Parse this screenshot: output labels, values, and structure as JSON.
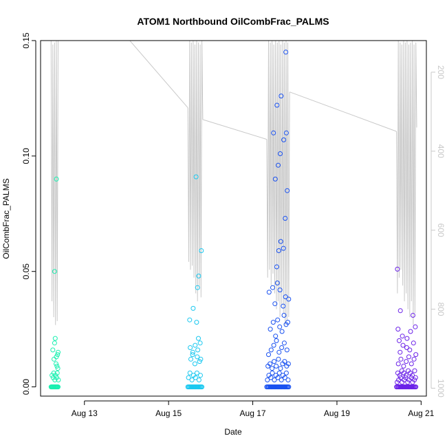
{
  "chart_data": {
    "type": "scatter",
    "title": "ATOM1 Northbound OilCombFrac_PALMS",
    "xlabel": "Date",
    "ylabel": "OilCombFrac_PALMS",
    "xlim": [
      "2016-08-11T23:00",
      "2016-08-21T03:00"
    ],
    "ylim": [
      -0.004,
      0.15
    ],
    "x_ticks": [
      {
        "date": "2016-08-13",
        "label": "Aug 13"
      },
      {
        "date": "2016-08-15",
        "label": "Aug 15"
      },
      {
        "date": "2016-08-17",
        "label": "Aug 17"
      },
      {
        "date": "2016-08-19",
        "label": "Aug 19"
      },
      {
        "date": "2016-08-21",
        "label": "Aug 21"
      }
    ],
    "y_ticks": [
      0.0,
      0.05,
      0.1,
      0.15
    ],
    "y_tick_labels": [
      "0.00",
      "0.05",
      "0.10",
      "0.15"
    ],
    "secondary_axis": {
      "side": "right",
      "color": "#c8c8c8",
      "reversed": true,
      "ticks": [
        200,
        400,
        600,
        800,
        1000
      ],
      "range": [
        120,
        1020
      ],
      "series": {
        "name": "",
        "color": "#c8c8c8",
        "segments": [
          {
            "x": [
              "2016-08-12T05:00",
              "2016-08-12T05:30",
              "2016-08-12T06:00",
              "2016-08-12T06:30",
              "2016-08-12T07:00",
              "2016-08-12T07:30",
              "2016-08-12T08:00",
              "2016-08-12T08:30",
              "2016-08-12T09:00",
              "2016-08-12T09:30"
            ],
            "y": [
              120,
              780,
              130,
              820,
              125,
              840,
              120,
              830,
              120,
              90
            ]
          },
          {
            "x": [
              "2016-08-12T09:30",
              "2016-08-13T22:00",
              "2016-08-15T11:00"
            ],
            "y": [
              90,
              100,
              290
            ]
          },
          {
            "x": [
              "2016-08-15T11:00",
              "2016-08-15T11:30",
              "2016-08-15T12:00",
              "2016-08-15T12:30",
              "2016-08-15T13:00",
              "2016-08-15T13:30",
              "2016-08-15T14:00",
              "2016-08-15T14:30",
              "2016-08-15T15:00",
              "2016-08-15T15:30",
              "2016-08-15T16:00",
              "2016-08-15T16:30",
              "2016-08-15T17:00",
              "2016-08-15T17:30",
              "2016-08-15T18:00",
              "2016-08-15T18:30",
              "2016-08-15T19:00",
              "2016-08-15T19:30"
            ],
            "y": [
              290,
              680,
              120,
              700,
              125,
              690,
              120,
              720,
              130,
              760,
              120,
              780,
              125,
              750,
              130,
              770,
              120,
              320
            ]
          },
          {
            "x": [
              "2016-08-15T19:30",
              "2016-08-17T08:00"
            ],
            "y": [
              320,
              370
            ]
          },
          {
            "x": [
              "2016-08-17T08:00",
              "2016-08-17T08:30",
              "2016-08-17T09:00",
              "2016-08-17T09:30",
              "2016-08-17T10:00",
              "2016-08-17T10:30",
              "2016-08-17T11:00",
              "2016-08-17T11:30",
              "2016-08-17T12:00",
              "2016-08-17T12:30",
              "2016-08-17T13:00",
              "2016-08-17T13:30",
              "2016-08-17T14:00",
              "2016-08-17T14:30",
              "2016-08-17T15:00",
              "2016-08-17T15:30",
              "2016-08-17T16:00",
              "2016-08-17T16:30",
              "2016-08-17T17:00",
              "2016-08-17T17:30",
              "2016-08-17T18:00",
              "2016-08-17T18:30",
              "2016-08-17T19:00",
              "2016-08-17T19:30",
              "2016-08-17T20:00",
              "2016-08-17T20:30",
              "2016-08-17T21:00"
            ],
            "y": [
              370,
              720,
              120,
              700,
              125,
              740,
              120,
              710,
              130,
              760,
              120,
              800,
              125,
              780,
              120,
              820,
              130,
              790,
              120,
              810,
              125,
              840,
              120,
              830,
              125,
              820,
              250
            ]
          },
          {
            "x": [
              "2016-08-17T21:00",
              "2016-08-20T10:00"
            ],
            "y": [
              250,
              350
            ]
          },
          {
            "x": [
              "2016-08-20T10:00",
              "2016-08-20T10:30",
              "2016-08-20T11:00",
              "2016-08-20T11:30",
              "2016-08-20T12:00",
              "2016-08-20T12:30",
              "2016-08-20T13:00",
              "2016-08-20T13:30",
              "2016-08-20T14:00",
              "2016-08-20T14:30",
              "2016-08-20T15:00",
              "2016-08-20T15:30",
              "2016-08-20T16:00",
              "2016-08-20T16:30",
              "2016-08-20T17:00",
              "2016-08-20T17:30",
              "2016-08-20T18:00",
              "2016-08-20T18:30",
              "2016-08-20T19:00",
              "2016-08-20T19:30",
              "2016-08-20T20:00",
              "2016-08-20T20:30",
              "2016-08-20T21:00",
              "2016-08-20T21:30"
            ],
            "y": [
              350,
              760,
              120,
              720,
              125,
              700,
              130,
              740,
              120,
              780,
              125,
              760,
              120,
              800,
              130,
              820,
              125,
              780,
              120,
              840,
              130,
              810,
              125,
              340
            ]
          }
        ]
      }
    },
    "series": [
      {
        "color": "#18f0b0",
        "x": [
          "2016-08-12T05:00",
          "2016-08-12T05:20",
          "2016-08-12T05:40",
          "2016-08-12T06:00",
          "2016-08-12T06:20",
          "2016-08-12T06:40",
          "2016-08-12T07:00",
          "2016-08-12T07:20",
          "2016-08-12T07:40",
          "2016-08-12T08:00",
          "2016-08-12T08:20",
          "2016-08-12T08:40",
          "2016-08-12T09:00",
          "2016-08-12T05:30",
          "2016-08-12T06:10",
          "2016-08-12T06:30",
          "2016-08-12T07:10",
          "2016-08-12T07:30",
          "2016-08-12T08:10",
          "2016-08-12T08:30",
          "2016-08-12T09:10",
          "2016-08-12T06:00",
          "2016-08-12T07:00",
          "2016-08-12T08:00",
          "2016-08-12T09:00",
          "2016-08-12T06:40",
          "2016-08-12T07:50",
          "2016-08-12T08:20",
          "2016-08-12T08:50",
          "2016-08-12T07:20",
          "2016-08-12T08:40",
          "2016-08-12T07:00",
          "2016-08-12T08:00"
        ],
        "y": [
          0,
          0,
          0,
          0,
          0,
          0,
          0,
          0,
          0,
          0,
          0,
          0,
          0,
          0.005,
          0.004,
          0.006,
          0.003,
          0.005,
          0.004,
          0.006,
          0.003,
          0.016,
          0.019,
          0.013,
          0.015,
          0.012,
          0.01,
          0.009,
          0.008,
          0.021,
          0.014,
          0.05,
          0.09
        ]
      },
      {
        "color": "#18c8f0",
        "x": [
          "2016-08-15T11:00",
          "2016-08-15T11:30",
          "2016-08-15T12:00",
          "2016-08-15T12:30",
          "2016-08-15T13:00",
          "2016-08-15T13:30",
          "2016-08-15T14:00",
          "2016-08-15T14:30",
          "2016-08-15T15:00",
          "2016-08-15T15:30",
          "2016-08-15T16:00",
          "2016-08-15T16:30",
          "2016-08-15T17:00",
          "2016-08-15T17:30",
          "2016-08-15T18:00",
          "2016-08-15T18:30",
          "2016-08-15T19:00",
          "2016-08-15T11:20",
          "2016-08-15T12:10",
          "2016-08-15T13:20",
          "2016-08-15T14:10",
          "2016-08-15T15:20",
          "2016-08-15T16:10",
          "2016-08-15T17:20",
          "2016-08-15T18:10",
          "2016-08-15T12:40",
          "2016-08-15T13:50",
          "2016-08-15T15:00",
          "2016-08-15T16:20",
          "2016-08-15T17:40",
          "2016-08-15T12:20",
          "2016-08-15T13:40",
          "2016-08-15T15:10",
          "2016-08-15T16:40",
          "2016-08-15T18:20",
          "2016-08-15T12:00",
          "2016-08-15T14:00",
          "2016-08-15T16:00",
          "2016-08-15T17:00",
          "2016-08-15T18:00",
          "2016-08-15T16:30",
          "2016-08-15T17:10",
          "2016-08-15T18:40",
          "2016-08-15T15:40"
        ],
        "y": [
          0,
          0,
          0,
          0,
          0,
          0,
          0,
          0,
          0,
          0,
          0,
          0,
          0,
          0,
          0,
          0,
          0,
          0.004,
          0.006,
          0.003,
          0.005,
          0.004,
          0.006,
          0.003,
          0.005,
          0.012,
          0.015,
          0.01,
          0.013,
          0.011,
          0.017,
          0.014,
          0.018,
          0.016,
          0.012,
          0.029,
          0.034,
          0.028,
          0.021,
          0.019,
          0.043,
          0.048,
          0.059,
          0.091
        ]
      },
      {
        "color": "#1850f0",
        "x": [
          "2016-08-17T08:00",
          "2016-08-17T08:30",
          "2016-08-17T09:00",
          "2016-08-17T09:30",
          "2016-08-17T10:00",
          "2016-08-17T10:30",
          "2016-08-17T11:00",
          "2016-08-17T11:30",
          "2016-08-17T12:00",
          "2016-08-17T12:30",
          "2016-08-17T13:00",
          "2016-08-17T13:30",
          "2016-08-17T14:00",
          "2016-08-17T14:30",
          "2016-08-17T15:00",
          "2016-08-17T15:30",
          "2016-08-17T16:00",
          "2016-08-17T16:30",
          "2016-08-17T17:00",
          "2016-08-17T17:30",
          "2016-08-17T18:00",
          "2016-08-17T18:30",
          "2016-08-17T19:00",
          "2016-08-17T19:30",
          "2016-08-17T20:00",
          "2016-08-17T20:30",
          "2016-08-17T08:20",
          "2016-08-17T09:10",
          "2016-08-17T10:20",
          "2016-08-17T11:10",
          "2016-08-17T12:20",
          "2016-08-17T13:10",
          "2016-08-17T14:20",
          "2016-08-17T15:10",
          "2016-08-17T16:20",
          "2016-08-17T17:10",
          "2016-08-17T18:20",
          "2016-08-17T19:10",
          "2016-08-17T20:10",
          "2016-08-17T08:40",
          "2016-08-17T09:50",
          "2016-08-17T11:00",
          "2016-08-17T12:10",
          "2016-08-17T13:20",
          "2016-08-17T14:40",
          "2016-08-17T15:50",
          "2016-08-17T17:00",
          "2016-08-17T18:10",
          "2016-08-17T19:20",
          "2016-08-17T20:20",
          "2016-08-17T09:00",
          "2016-08-17T10:30",
          "2016-08-17T12:00",
          "2016-08-17T13:30",
          "2016-08-17T15:00",
          "2016-08-17T16:30",
          "2016-08-17T18:00",
          "2016-08-17T19:30",
          "2016-08-17T10:00",
          "2016-08-17T11:40",
          "2016-08-17T13:00",
          "2016-08-17T14:10",
          "2016-08-17T15:20",
          "2016-08-17T16:40",
          "2016-08-17T17:50",
          "2016-08-17T19:00",
          "2016-08-17T20:00",
          "2016-08-17T09:20",
          "2016-08-17T11:20",
          "2016-08-17T12:40",
          "2016-08-17T14:00",
          "2016-08-17T15:30",
          "2016-08-17T17:20",
          "2016-08-17T18:40",
          "2016-08-17T20:30",
          "2016-08-17T13:40",
          "2016-08-17T14:50",
          "2016-08-17T16:00",
          "2016-08-17T17:30",
          "2016-08-17T18:30",
          "2016-08-17T19:40",
          "2016-08-17T12:50",
          "2016-08-17T14:30",
          "2016-08-17T15:40",
          "2016-08-17T17:40",
          "2016-08-17T19:10",
          "2016-08-17T11:50",
          "2016-08-17T13:50",
          "2016-08-17T16:10",
          "2016-08-17T18:50"
        ],
        "y": [
          0,
          0,
          0,
          0,
          0,
          0,
          0,
          0,
          0,
          0,
          0,
          0,
          0,
          0,
          0,
          0,
          0,
          0,
          0,
          0,
          0,
          0,
          0,
          0,
          0,
          0,
          0.003,
          0.005,
          0.004,
          0.006,
          0.003,
          0.005,
          0.004,
          0.006,
          0.003,
          0.005,
          0.004,
          0.006,
          0.003,
          0.009,
          0.01,
          0.008,
          0.011,
          0.009,
          0.012,
          0.008,
          0.01,
          0.011,
          0.009,
          0.01,
          0.014,
          0.016,
          0.018,
          0.02,
          0.015,
          0.017,
          0.019,
          0.016,
          0.025,
          0.028,
          0.022,
          0.029,
          0.026,
          0.024,
          0.031,
          0.027,
          0.028,
          0.041,
          0.043,
          0.036,
          0.045,
          0.042,
          0.035,
          0.039,
          0.038,
          0.052,
          0.059,
          0.063,
          0.06,
          0.073,
          0.085,
          0.09,
          0.096,
          0.101,
          0.107,
          0.11,
          0.11,
          0.122,
          0.126,
          0.145
        ]
      },
      {
        "color": "#6a20e8",
        "x": [
          "2016-08-20T10:00",
          "2016-08-20T10:30",
          "2016-08-20T11:00",
          "2016-08-20T11:30",
          "2016-08-20T12:00",
          "2016-08-20T12:30",
          "2016-08-20T13:00",
          "2016-08-20T13:30",
          "2016-08-20T14:00",
          "2016-08-20T14:30",
          "2016-08-20T15:00",
          "2016-08-20T15:30",
          "2016-08-20T16:00",
          "2016-08-20T16:30",
          "2016-08-20T17:00",
          "2016-08-20T17:30",
          "2016-08-20T18:00",
          "2016-08-20T18:30",
          "2016-08-20T19:00",
          "2016-08-20T19:30",
          "2016-08-20T20:00",
          "2016-08-20T20:30",
          "2016-08-20T21:00",
          "2016-08-20T10:20",
          "2016-08-20T11:10",
          "2016-08-20T12:20",
          "2016-08-20T13:10",
          "2016-08-20T14:20",
          "2016-08-20T15:10",
          "2016-08-20T16:20",
          "2016-08-20T17:10",
          "2016-08-20T18:20",
          "2016-08-20T19:10",
          "2016-08-20T20:10",
          "2016-08-20T20:50",
          "2016-08-20T10:40",
          "2016-08-20T11:50",
          "2016-08-20T13:00",
          "2016-08-20T14:10",
          "2016-08-20T15:20",
          "2016-08-20T16:40",
          "2016-08-20T17:50",
          "2016-08-20T19:00",
          "2016-08-20T20:20",
          "2016-08-20T11:00",
          "2016-08-20T12:30",
          "2016-08-20T14:00",
          "2016-08-20T15:30",
          "2016-08-20T17:00",
          "2016-08-20T18:30",
          "2016-08-20T20:00",
          "2016-08-20T12:00",
          "2016-08-20T13:40",
          "2016-08-20T15:50",
          "2016-08-20T17:30",
          "2016-08-20T19:40",
          "2016-08-20T21:00",
          "2016-08-20T11:30",
          "2016-08-20T13:20",
          "2016-08-20T16:00",
          "2016-08-20T18:00",
          "2016-08-20T19:20",
          "2016-08-20T20:40",
          "2016-08-20T10:50",
          "2016-08-20T12:10",
          "2016-08-20T10:30"
        ],
        "y": [
          0,
          0,
          0,
          0,
          0,
          0,
          0,
          0,
          0,
          0,
          0,
          0,
          0,
          0,
          0,
          0,
          0,
          0,
          0,
          0,
          0,
          0,
          0,
          0.002,
          0.003,
          0.004,
          0.002,
          0.003,
          0.004,
          0.002,
          0.003,
          0.004,
          0.002,
          0.003,
          0.004,
          0.006,
          0.005,
          0.007,
          0.006,
          0.005,
          0.007,
          0.006,
          0.005,
          0.007,
          0.01,
          0.012,
          0.009,
          0.011,
          0.013,
          0.01,
          0.012,
          0.015,
          0.018,
          0.017,
          0.016,
          0.019,
          0.014,
          0.02,
          0.022,
          0.021,
          0.024,
          0.031,
          0.026,
          0.025,
          0.033,
          0.051
        ]
      }
    ]
  }
}
